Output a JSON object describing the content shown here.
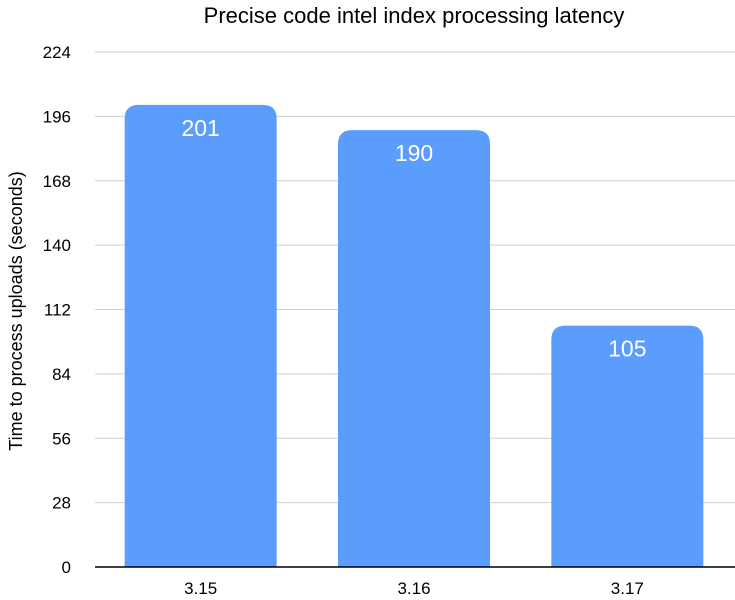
{
  "chart_data": {
    "type": "bar",
    "title": "Precise code intel index processing latency",
    "xlabel": "",
    "ylabel": "Time to process uploads (seconds)",
    "categories": [
      "3.15",
      "3.16",
      "3.17"
    ],
    "values": [
      201,
      190,
      105
    ],
    "data_labels": [
      "201",
      "190",
      "105"
    ],
    "ylim": [
      0,
      224
    ],
    "yticks": [
      0,
      28,
      56,
      84,
      112,
      140,
      168,
      196,
      224
    ],
    "ytick_labels": [
      "0",
      "28",
      "56",
      "84",
      "112",
      "140",
      "168",
      "196",
      "224"
    ],
    "grid": true,
    "legend": "none",
    "bar_color": "#5b9dfc"
  }
}
